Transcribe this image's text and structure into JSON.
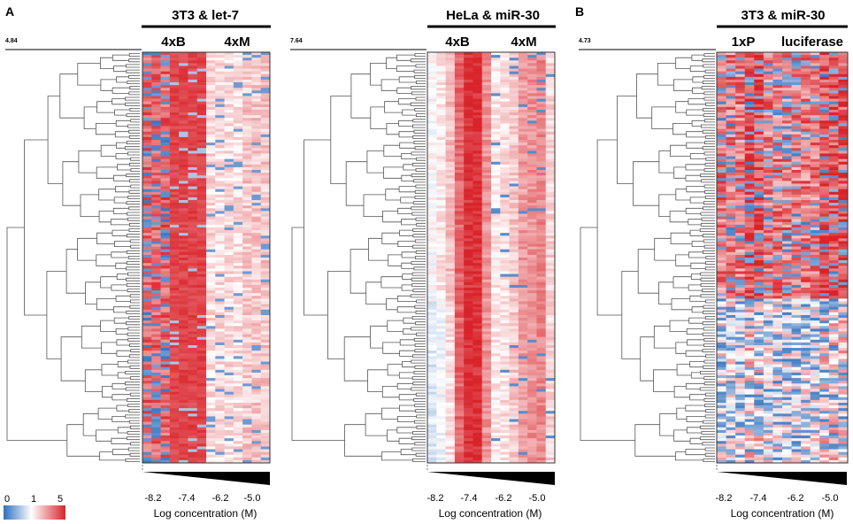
{
  "figure": {
    "panel_letters": [
      "A",
      "B"
    ],
    "colors": {
      "low": "#2e6fbe",
      "mid": "#ffffff",
      "high": "#d9232a"
    },
    "legend": {
      "ticks": [
        "0",
        "1",
        "5"
      ]
    }
  },
  "chart_data": [
    {
      "type": "heatmap",
      "title": "3T3 & let-7",
      "groups": [
        "4xB",
        "4xM"
      ],
      "scale_value": "4.84",
      "xticks": [
        "-8.2",
        "-7.4",
        "-6.2",
        "-5.0"
      ],
      "xlabel": "Log concentration (M)",
      "color_range": [
        0,
        5
      ],
      "pattern": "first group predominantly high (red) with scattered low (blue) rows; second group weak pink with sparse blue",
      "n_rows": 150
    },
    {
      "type": "heatmap",
      "title": "HeLa & miR-30",
      "groups": [
        "4xB",
        "4xM"
      ],
      "scale_value": "7.64",
      "xticks": [
        "-8.2",
        "-7.4",
        "-6.2",
        "-5.0"
      ],
      "xlabel": "Log concentration (M)",
      "color_range": [
        0,
        5
      ],
      "pattern": "first group strong red at higher concentrations; second group moderate red gradient",
      "n_rows": 150
    },
    {
      "type": "heatmap",
      "title": "3T3 & miR-30",
      "groups": [
        "1xP",
        "luciferase"
      ],
      "scale_value": "4.73",
      "xticks": [
        "-8.2",
        "-7.4",
        "-6.2",
        "-5.0"
      ],
      "xlabel": "Log concentration (M)",
      "color_range": [
        0,
        5
      ],
      "pattern": "both groups mixed red and blue, lower rows more blue",
      "n_rows": 150
    }
  ]
}
